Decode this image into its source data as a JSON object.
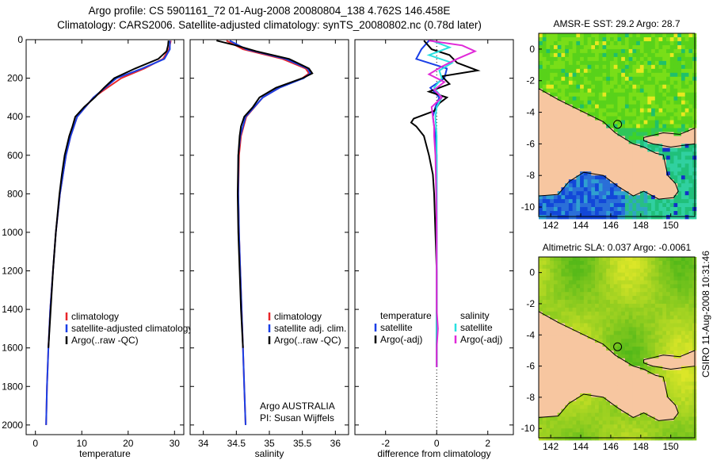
{
  "header": {
    "title_line1": "Argo profile: CS 5901161_72 01-Aug-2008 20080804_138 4.762S 146.458E",
    "title_line2": "Climatology: CARS2006. Satellite-adjusted climatology: synTS_20080802.nc (0.78d later)"
  },
  "chart_data": [
    {
      "id": "temperature",
      "type": "line",
      "xlabel": "temperature",
      "xlim": [
        -2,
        32
      ],
      "ylim": [
        2050,
        0
      ],
      "xticks": [
        0,
        10,
        20,
        30
      ],
      "yticks": [
        0,
        200,
        400,
        600,
        800,
        1000,
        1200,
        1400,
        1600,
        1800,
        2000
      ],
      "series": [
        {
          "name": "climatology",
          "color": "#e8262a",
          "depth": [
            5,
            50,
            100,
            150,
            200,
            250,
            300,
            400,
            500,
            600,
            800,
            1000,
            1200,
            1400,
            1600,
            1800,
            2000
          ],
          "values": [
            29.2,
            28.8,
            27.5,
            23.5,
            18.5,
            15.5,
            12.5,
            9.0,
            7.6,
            6.6,
            5.3,
            4.4,
            3.8,
            3.2,
            2.8,
            2.5,
            2.3
          ]
        },
        {
          "name": "satellite-adjusted climatology",
          "color": "#1a3fe6",
          "depth": [
            5,
            50,
            100,
            150,
            200,
            250,
            300,
            400,
            500,
            600,
            800,
            1000,
            1200,
            1400,
            1600,
            1800,
            2000
          ],
          "values": [
            29.0,
            29.0,
            27.8,
            23.0,
            17.5,
            15.0,
            12.5,
            9.0,
            7.6,
            6.6,
            5.3,
            4.4,
            3.8,
            3.2,
            2.8,
            2.5,
            2.3
          ]
        },
        {
          "name": "Argo(..raw -QC)",
          "color": "#000000",
          "depth": [
            5,
            30,
            60,
            100,
            150,
            200,
            250,
            300,
            350,
            400,
            450,
            500,
            600,
            700,
            800,
            1000,
            1200,
            1400,
            1600
          ],
          "values": [
            28.7,
            28.6,
            28.3,
            26.5,
            21.5,
            17.0,
            14.8,
            12.8,
            10.5,
            8.6,
            8.0,
            7.3,
            6.3,
            5.7,
            5.2,
            4.4,
            3.8,
            3.3,
            2.8
          ]
        }
      ],
      "legend": [
        "climatology",
        "satellite-adjusted climatology",
        "Argo(..raw -QC)"
      ]
    },
    {
      "id": "salinity",
      "type": "line",
      "xlabel": "salinity",
      "xlim": [
        33.8,
        36.2
      ],
      "ylim": [
        2050,
        0
      ],
      "xticks": [
        34,
        34.5,
        35,
        35.5,
        36
      ],
      "series": [
        {
          "name": "climatology",
          "color": "#e8262a",
          "depth": [
            5,
            50,
            100,
            150,
            175,
            200,
            250,
            300,
            400,
            500,
            600,
            800,
            1000,
            1200,
            1400,
            1600,
            1800,
            2000
          ],
          "values": [
            34.35,
            34.6,
            35.2,
            35.55,
            35.6,
            35.5,
            35.15,
            34.9,
            34.65,
            34.57,
            34.54,
            34.53,
            34.54,
            34.56,
            34.58,
            34.6,
            34.62,
            34.64
          ]
        },
        {
          "name": "satellite adj. clim.",
          "color": "#1a3fe6",
          "depth": [
            5,
            50,
            100,
            150,
            175,
            200,
            250,
            300,
            400,
            500,
            600,
            800,
            1000,
            1200,
            1400,
            1600,
            1800,
            2000
          ],
          "values": [
            34.4,
            34.65,
            35.25,
            35.58,
            35.62,
            35.52,
            35.15,
            34.9,
            34.64,
            34.56,
            34.53,
            34.53,
            34.54,
            34.56,
            34.58,
            34.6,
            34.62,
            34.64
          ]
        },
        {
          "name": "Argo(..raw -QC)",
          "color": "#000000",
          "depth": [
            5,
            30,
            60,
            100,
            150,
            175,
            200,
            250,
            300,
            350,
            400,
            450,
            500,
            600,
            800,
            1000,
            1200,
            1400,
            1600
          ],
          "values": [
            34.2,
            34.5,
            34.8,
            35.3,
            35.6,
            35.65,
            35.5,
            35.1,
            34.85,
            34.75,
            34.62,
            34.57,
            34.55,
            34.53,
            34.52,
            34.53,
            34.55,
            34.57,
            34.6
          ]
        }
      ],
      "legend": [
        "climatology",
        "satellite adj. clim.",
        "Argo(..raw -QC)"
      ],
      "annotation": [
        "Argo AUSTRALIA",
        "PI: Susan Wijffels"
      ]
    },
    {
      "id": "difference",
      "type": "line",
      "xlabel": "difference from climatology",
      "xlim": [
        -3.2,
        3.0
      ],
      "ylim": [
        2050,
        0
      ],
      "xticks": [
        -2,
        0,
        2
      ],
      "zero_line": true,
      "series": [
        {
          "name": "temperature satellite",
          "color": "#1a3fe6",
          "depth": [
            5,
            50,
            100,
            150,
            200,
            250,
            300,
            350,
            400,
            500,
            600,
            700,
            800,
            1000,
            1200,
            1400,
            1600,
            1700
          ],
          "values": [
            -0.3,
            -0.6,
            -0.8,
            0.4,
            0.3,
            -0.25,
            0.1,
            -0.05,
            -0.15,
            -0.05,
            0.0,
            0.0,
            0.0,
            0.0,
            0.0,
            0.0,
            0.0,
            0.0
          ]
        },
        {
          "name": "temperature Argo(-adj)",
          "color": "#000000",
          "depth": [
            5,
            50,
            80,
            120,
            160,
            190,
            230,
            270,
            300,
            330,
            370,
            410,
            430,
            450,
            500,
            600,
            700,
            800,
            1000,
            1200,
            1400,
            1600,
            1700
          ],
          "values": [
            -0.5,
            -0.2,
            0.5,
            0.8,
            1.6,
            0.2,
            0.5,
            -0.3,
            0.4,
            0.1,
            -0.1,
            -0.9,
            -1.0,
            -0.8,
            -0.5,
            -0.3,
            -0.15,
            -0.1,
            -0.05,
            0.0,
            0.0,
            0.0,
            0.0
          ]
        },
        {
          "name": "salinity satellite",
          "color": "#29e0e0",
          "depth": [
            5,
            40,
            80,
            120,
            160,
            200,
            250,
            300,
            350,
            400,
            500,
            600,
            800,
            1000,
            1200,
            1400,
            1600,
            1700
          ],
          "values": [
            -0.2,
            0.5,
            -0.3,
            0.6,
            0.1,
            0.2,
            -0.1,
            0.2,
            0.0,
            -0.05,
            0.0,
            0.0,
            0.0,
            0.0,
            0.0,
            0.0,
            0.0,
            0.0
          ]
        },
        {
          "name": "salinity Argo(-adj)",
          "color": "#e02ad8",
          "depth": [
            5,
            30,
            60,
            100,
            140,
            180,
            220,
            260,
            300,
            350,
            400,
            450,
            500,
            600,
            800,
            1000,
            1200,
            1400,
            1500,
            1600,
            1700
          ],
          "values": [
            -0.3,
            1.0,
            1.5,
            0.8,
            0.2,
            -0.3,
            0.3,
            -0.1,
            0.2,
            -0.2,
            -0.15,
            -0.1,
            -0.1,
            -0.05,
            -0.02,
            0.0,
            0.0,
            0.0,
            0.05,
            0.0,
            0.0
          ]
        }
      ],
      "legend_groups": [
        {
          "heading": "temperature",
          "items": [
            "satellite",
            "Argo(-adj)"
          ]
        },
        {
          "heading": "salinity",
          "items": [
            "satellite",
            "Argo(-adj)"
          ]
        }
      ]
    },
    {
      "id": "sst-map",
      "type": "heatmap",
      "title": "AMSR-E SST: 29.2  Argo: 28.7",
      "xticks": [
        142,
        144,
        146,
        148,
        150
      ],
      "yticks": [
        0,
        -2,
        -4,
        -6,
        -8,
        -10
      ],
      "xlim": [
        141.2,
        151.6
      ],
      "ylim": [
        -10.6,
        1.0
      ],
      "float_position": [
        146.458,
        -4.762
      ]
    },
    {
      "id": "sla-map",
      "type": "heatmap",
      "title": "Altimetric SLA: 0.037  Argo: -0.0061",
      "xticks": [
        142,
        144,
        146,
        148,
        150
      ],
      "yticks": [
        0,
        -2,
        -4,
        -6,
        -8,
        -10
      ],
      "xlim": [
        141.2,
        151.6
      ],
      "ylim": [
        -10.6,
        1.0
      ],
      "float_position": [
        146.458,
        -4.762
      ]
    }
  ],
  "footer": {
    "side_stamp": "CSIRO 11-Aug-2008 10:31:46"
  }
}
